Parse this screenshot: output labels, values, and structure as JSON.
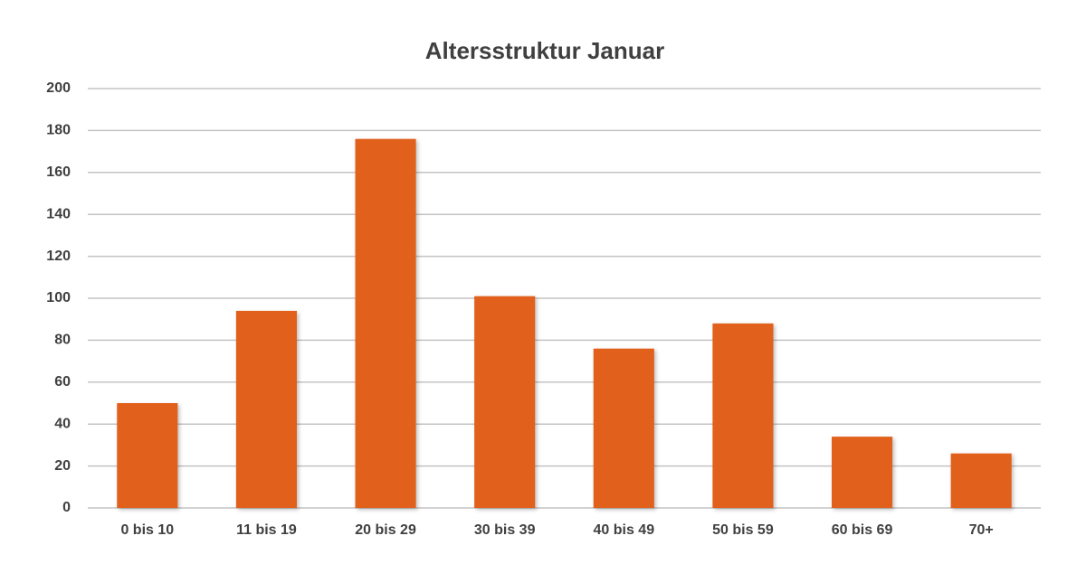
{
  "chart_data": {
    "type": "bar",
    "title": "Altersstruktur Januar",
    "categories": [
      "0 bis 10",
      "11 bis 19",
      "20 bis 29",
      "30 bis 39",
      "40 bis 49",
      "50 bis 59",
      "60 bis 69",
      "70+"
    ],
    "values": [
      50,
      94,
      176,
      101,
      76,
      88,
      34,
      26
    ],
    "color": "#e0601e",
    "ylim": [
      0,
      200
    ],
    "yticks": [
      0,
      20,
      40,
      60,
      80,
      100,
      120,
      140,
      160,
      180,
      200
    ],
    "grid": true
  }
}
